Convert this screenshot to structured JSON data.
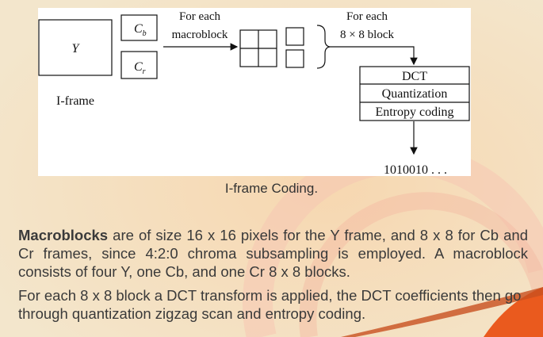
{
  "diagram": {
    "y_label": "Y",
    "cb_main": "C",
    "cb_sub": "b",
    "cr_main": "C",
    "cr_sub": "r",
    "iframe_label": "I-frame",
    "for_each_mb_line1": "For each",
    "for_each_mb_line2": "macroblock",
    "for_each_block_line1": "For each",
    "for_each_block_line2": "8 × 8 block",
    "dct_label": "DCT",
    "quant_label": "Quantization",
    "entropy_label": "Entropy coding",
    "bitstream": "1010010 . . ."
  },
  "caption": "I-frame Coding.",
  "paragraph1": {
    "bold": "Macroblocks",
    "rest": " are of size 16 x 16 pixels for the Y frame, and 8 x 8 for Cb and Cr frames, since 4:2:0 chroma subsampling is employed. A macroblock consists of four Y, one Cb, and one Cr 8 x 8 blocks."
  },
  "paragraph2": "For each 8 x 8 block a DCT transform is applied, the DCT coefficients then go through quantization zigzag scan and entropy coding.",
  "colors": {
    "background": "#f2e3c6",
    "accent_orange": "#ea5a1e",
    "text_gray": "#3a3a3a"
  }
}
